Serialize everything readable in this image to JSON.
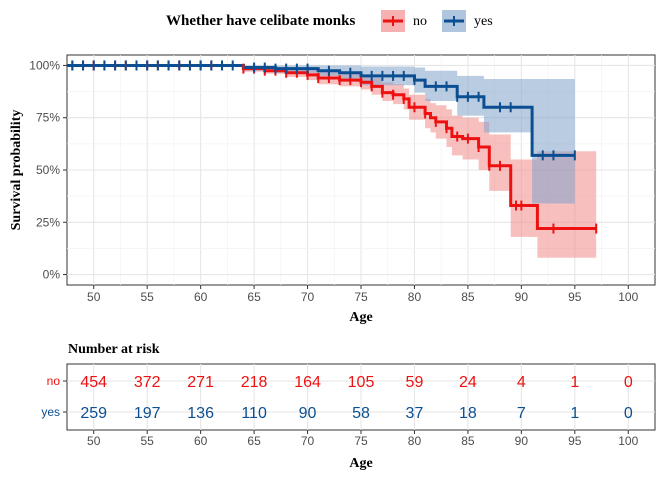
{
  "colors": {
    "no": "#ee1111",
    "yes": "#0b4f92",
    "no_band": "#f28a8a",
    "yes_band": "#7fa3cb",
    "grid": "#e6e6e6",
    "axis_text": "#4d4d4d"
  },
  "legend": {
    "title": "Whether have celibate monks",
    "items": [
      {
        "key": "no",
        "label": "no"
      },
      {
        "key": "yes",
        "label": "yes"
      }
    ]
  },
  "risk_table": {
    "title": "Number at risk",
    "xlabel": "Age",
    "time_points": [
      50,
      55,
      60,
      65,
      70,
      75,
      80,
      85,
      90,
      95,
      100
    ],
    "rows": [
      {
        "key": "no",
        "label": "no",
        "counts": [
          "454",
          "372",
          "271",
          "218",
          "164",
          "105",
          "59",
          "24",
          "4",
          "1",
          "0"
        ]
      },
      {
        "key": "yes",
        "label": "yes",
        "counts": [
          "259",
          "197",
          "136",
          "110",
          "90",
          "58",
          "37",
          "18",
          "7",
          "1",
          "0"
        ]
      }
    ]
  },
  "chart_data": {
    "type": "line",
    "subtype": "kaplan-meier step",
    "title": "",
    "xlabel": "Age",
    "ylabel": "Survival probability",
    "xlim": [
      47.5,
      102.5
    ],
    "ylim": [
      -0.05,
      1.05
    ],
    "x_ticks": [
      50,
      55,
      60,
      65,
      70,
      75,
      80,
      85,
      90,
      95,
      100
    ],
    "y_ticks": [
      0,
      0.25,
      0.5,
      0.75,
      1.0
    ],
    "y_tick_labels": [
      "0%",
      "25%",
      "50%",
      "75%",
      "100%"
    ],
    "series": [
      {
        "name": "no",
        "steps": [
          [
            47.5,
            1.0
          ],
          [
            62,
            1.0
          ],
          [
            64,
            0.985
          ],
          [
            66,
            0.975
          ],
          [
            68,
            0.965
          ],
          [
            70,
            0.955
          ],
          [
            71,
            0.94
          ],
          [
            73,
            0.93
          ],
          [
            75,
            0.92
          ],
          [
            76,
            0.9
          ],
          [
            77,
            0.87
          ],
          [
            78,
            0.86
          ],
          [
            79,
            0.84
          ],
          [
            79.5,
            0.8
          ],
          [
            81,
            0.77
          ],
          [
            81.5,
            0.75
          ],
          [
            82,
            0.73
          ],
          [
            83,
            0.7
          ],
          [
            83.5,
            0.66
          ],
          [
            84.5,
            0.65
          ],
          [
            86,
            0.61
          ],
          [
            87,
            0.52
          ],
          [
            89,
            0.33
          ],
          [
            91.5,
            0.22
          ],
          [
            97,
            0.22
          ]
        ],
        "lower": [
          [
            47.5,
            1.0
          ],
          [
            62,
            1.0
          ],
          [
            64,
            0.97
          ],
          [
            66,
            0.96
          ],
          [
            68,
            0.945
          ],
          [
            70,
            0.93
          ],
          [
            71,
            0.91
          ],
          [
            73,
            0.9
          ],
          [
            75,
            0.885
          ],
          [
            76,
            0.86
          ],
          [
            77,
            0.83
          ],
          [
            78,
            0.815
          ],
          [
            79,
            0.79
          ],
          [
            79.5,
            0.74
          ],
          [
            81,
            0.7
          ],
          [
            81.5,
            0.68
          ],
          [
            82,
            0.65
          ],
          [
            83,
            0.61
          ],
          [
            83.5,
            0.57
          ],
          [
            84.5,
            0.55
          ],
          [
            86,
            0.5
          ],
          [
            87,
            0.4
          ],
          [
            89,
            0.18
          ],
          [
            91.5,
            0.08
          ],
          [
            97,
            0.08
          ]
        ],
        "upper": [
          [
            47.5,
            1.0
          ],
          [
            62,
            1.0
          ],
          [
            64,
            0.998
          ],
          [
            66,
            0.99
          ],
          [
            68,
            0.985
          ],
          [
            70,
            0.978
          ],
          [
            71,
            0.97
          ],
          [
            73,
            0.96
          ],
          [
            75,
            0.955
          ],
          [
            76,
            0.94
          ],
          [
            77,
            0.92
          ],
          [
            78,
            0.91
          ],
          [
            79,
            0.89
          ],
          [
            79.5,
            0.86
          ],
          [
            81,
            0.84
          ],
          [
            81.5,
            0.82
          ],
          [
            82,
            0.81
          ],
          [
            83,
            0.79
          ],
          [
            83.5,
            0.76
          ],
          [
            84.5,
            0.75
          ],
          [
            86,
            0.73
          ],
          [
            87,
            0.67
          ],
          [
            89,
            0.55
          ],
          [
            91.5,
            0.59
          ],
          [
            97,
            0.59
          ]
        ],
        "censor_x": [
          48,
          49,
          50,
          51,
          52,
          53,
          54,
          55,
          56,
          57,
          58,
          59,
          60,
          61,
          62,
          64,
          65,
          66,
          67,
          68,
          69,
          70,
          71,
          72,
          73,
          74,
          75,
          76,
          77,
          78,
          79,
          80,
          81,
          82,
          83,
          84,
          85,
          86,
          87,
          88,
          89.5,
          90,
          93,
          97
        ]
      },
      {
        "name": "yes",
        "steps": [
          [
            47.5,
            1.0
          ],
          [
            64,
            0.99
          ],
          [
            67,
            0.985
          ],
          [
            71,
            0.975
          ],
          [
            73,
            0.965
          ],
          [
            75,
            0.95
          ],
          [
            80,
            0.93
          ],
          [
            81,
            0.9
          ],
          [
            84,
            0.85
          ],
          [
            86.5,
            0.8
          ],
          [
            91,
            0.57
          ],
          [
            95,
            0.57
          ]
        ],
        "lower": [
          [
            47.5,
            1.0
          ],
          [
            64,
            0.975
          ],
          [
            67,
            0.965
          ],
          [
            71,
            0.95
          ],
          [
            73,
            0.93
          ],
          [
            75,
            0.905
          ],
          [
            80,
            0.87
          ],
          [
            81,
            0.83
          ],
          [
            84,
            0.76
          ],
          [
            86.5,
            0.68
          ],
          [
            91,
            0.34
          ],
          [
            95,
            0.34
          ]
        ],
        "upper": [
          [
            47.5,
            1.0
          ],
          [
            64,
            1.0
          ],
          [
            67,
            1.0
          ],
          [
            71,
            1.0
          ],
          [
            73,
            1.0
          ],
          [
            75,
            0.995
          ],
          [
            80,
            0.99
          ],
          [
            81,
            0.975
          ],
          [
            84,
            0.95
          ],
          [
            86.5,
            0.935
          ],
          [
            91,
            0.935
          ],
          [
            95,
            0.935
          ]
        ],
        "censor_x": [
          48,
          49,
          50,
          51,
          52,
          53,
          54,
          55,
          56,
          57,
          58,
          59,
          60,
          61,
          62,
          63,
          65,
          66,
          67,
          68,
          69,
          70,
          72,
          74,
          76,
          77,
          78,
          79,
          80,
          82,
          83,
          84,
          85,
          86,
          88,
          89,
          92,
          93,
          95
        ]
      }
    ]
  }
}
